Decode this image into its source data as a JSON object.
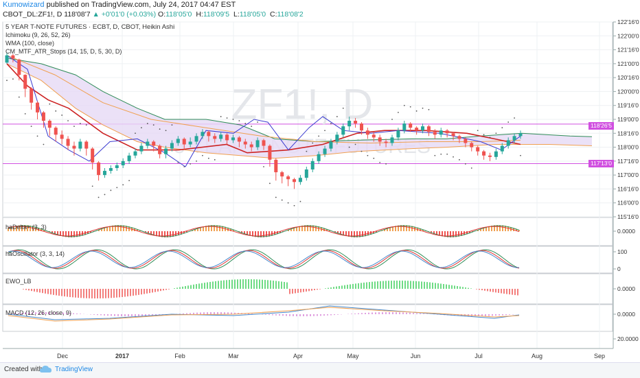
{
  "header": {
    "author": "Kumowizard",
    "published": "published on TradingView.com, July 24, 2017 04:47 EST",
    "symbol_line": "CBOT_DL:ZF1!, D",
    "last": "118'08'7",
    "change": "▲ +0'01'0 (+0.03%)",
    "ohlc": [
      {
        "k": "O:",
        "v": "118'05'0"
      },
      {
        "k": "H:",
        "v": "118'09'5"
      },
      {
        "k": "L:",
        "v": "118'05'0"
      },
      {
        "k": "C:",
        "v": "118'08'2"
      }
    ]
  },
  "indicators": {
    "title": "5 YEAR T-NOTE FUTURES · ECBT, D, CBOT, Heikin Ashi",
    "ichimoku": "Ichimoku (9, 26, 52, 26)",
    "wma": "WMA (100, close)",
    "atr": "CM_MTF_ATR_Stops (14, 15, D, 5, 30, D)"
  },
  "watermark": {
    "symbol": "ZF1!, D",
    "sub": "5 YEAR T-NOTE FUTURES"
  },
  "price_tags": [
    {
      "label": "118'26'5",
      "color": "#d04fe0"
    },
    {
      "label": "117'13'0",
      "color": "#d04fe0"
    }
  ],
  "panes": {
    "hadelta": {
      "label": "haDelta+ (3, 3)",
      "ticks": [
        "0.0000"
      ]
    },
    "haosc": {
      "label": "haOscillator (3, 3, 14)",
      "ticks": [
        "100",
        "0"
      ]
    },
    "ewo": {
      "label": "EWO_LB",
      "ticks": [
        "0.0000"
      ]
    },
    "macd": {
      "label": "MACD (12, 26, close, 9)",
      "ticks": [
        "0.0000",
        "20.0000"
      ]
    }
  },
  "footer": {
    "created": "Created with",
    "brand": "TradingView"
  },
  "colors": {
    "up": "#26a69a",
    "down": "#ef5350",
    "kumo": "#e6d9f5",
    "kijun": "#cc2222",
    "tenkan": "#3b3bd0",
    "wma": "#f0a050",
    "senkouA": "#2e8b57"
  },
  "chart_data": {
    "type": "candlestick",
    "x_ticks": [
      "Dec",
      "2017",
      "Feb",
      "Mar",
      "Apr",
      "May",
      "Jun",
      "Jul",
      "Aug",
      "Sep"
    ],
    "y_ticks": [
      "122'16'0",
      "122'00'0",
      "121'16'0",
      "121'00'0",
      "120'16'0",
      "120'00'0",
      "119'16'0",
      "119'00'0",
      "118'16'0",
      "118'00'0",
      "117'16'0",
      "117'00'0",
      "116'16'0",
      "116'00'0",
      "115'16'0"
    ],
    "ylim": [
      115.5,
      122.5
    ],
    "horizontal_lines": [
      118.83,
      117.41
    ],
    "candles": [
      [
        121.04,
        121.3,
        121.4,
        121.0
      ],
      [
        121.3,
        121.18,
        121.35,
        121.05
      ],
      [
        121.15,
        120.6,
        121.18,
        120.4
      ],
      [
        120.6,
        120.1,
        120.62,
        119.8
      ],
      [
        120.1,
        119.6,
        120.15,
        119.35
      ],
      [
        119.6,
        119.25,
        119.65,
        119.0
      ],
      [
        119.25,
        118.95,
        119.3,
        118.7
      ],
      [
        118.95,
        118.7,
        119.0,
        118.4
      ],
      [
        118.7,
        118.45,
        118.75,
        118.2
      ],
      [
        118.45,
        118.3,
        118.6,
        118.1
      ],
      [
        118.3,
        118.05,
        118.4,
        117.9
      ],
      [
        118.05,
        117.95,
        118.2,
        117.7
      ],
      [
        117.95,
        118.2,
        118.3,
        117.85
      ],
      [
        118.2,
        117.95,
        118.25,
        117.7
      ],
      [
        117.95,
        117.45,
        118.0,
        117.2
      ],
      [
        117.45,
        117.0,
        117.5,
        116.8
      ],
      [
        117.0,
        117.15,
        117.25,
        116.9
      ],
      [
        117.15,
        117.25,
        117.35,
        117.05
      ],
      [
        117.25,
        117.35,
        117.45,
        117.15
      ],
      [
        117.35,
        117.5,
        117.6,
        117.25
      ],
      [
        117.5,
        117.7,
        117.8,
        117.4
      ],
      [
        117.7,
        117.85,
        117.95,
        117.6
      ],
      [
        117.85,
        118.05,
        118.15,
        117.75
      ],
      [
        118.05,
        118.2,
        118.3,
        117.95
      ],
      [
        118.2,
        118.05,
        118.25,
        117.85
      ],
      [
        118.05,
        117.75,
        118.1,
        117.6
      ],
      [
        117.75,
        117.95,
        118.05,
        117.6
      ],
      [
        117.95,
        118.15,
        118.25,
        117.85
      ],
      [
        118.15,
        118.3,
        118.4,
        118.05
      ],
      [
        118.3,
        118.1,
        118.35,
        117.9
      ],
      [
        118.1,
        118.2,
        118.35,
        118.0
      ],
      [
        118.2,
        118.4,
        118.5,
        118.1
      ],
      [
        118.4,
        118.55,
        118.65,
        118.3
      ],
      [
        118.55,
        118.4,
        118.6,
        118.2
      ],
      [
        118.4,
        118.3,
        118.5,
        118.15
      ],
      [
        118.3,
        118.45,
        118.55,
        118.2
      ],
      [
        118.45,
        118.25,
        118.5,
        118.1
      ],
      [
        118.25,
        118.35,
        118.45,
        118.15
      ],
      [
        118.35,
        118.2,
        118.4,
        118.0
      ],
      [
        118.2,
        118.1,
        118.3,
        117.95
      ],
      [
        118.1,
        118.0,
        118.2,
        117.85
      ],
      [
        118.0,
        118.25,
        118.35,
        117.9
      ],
      [
        118.25,
        118.05,
        118.3,
        117.9
      ],
      [
        118.05,
        117.55,
        118.1,
        117.3
      ],
      [
        117.55,
        117.1,
        117.6,
        116.8
      ],
      [
        117.1,
        116.95,
        117.15,
        116.7
      ],
      [
        116.95,
        116.85,
        117.0,
        116.6
      ],
      [
        116.85,
        116.75,
        116.9,
        116.5
      ],
      [
        116.75,
        116.9,
        117.0,
        116.65
      ],
      [
        116.9,
        117.2,
        117.3,
        116.8
      ],
      [
        117.2,
        117.5,
        117.6,
        117.1
      ],
      [
        117.5,
        117.75,
        117.85,
        117.4
      ],
      [
        117.75,
        117.95,
        118.05,
        117.65
      ],
      [
        117.95,
        118.2,
        118.3,
        117.85
      ],
      [
        118.2,
        118.45,
        118.55,
        118.1
      ],
      [
        118.45,
        118.75,
        118.85,
        118.35
      ],
      [
        118.75,
        118.95,
        119.1,
        118.6
      ],
      [
        118.95,
        118.85,
        119.05,
        118.7
      ],
      [
        118.85,
        118.6,
        118.9,
        118.45
      ],
      [
        118.6,
        118.45,
        118.7,
        118.3
      ],
      [
        118.45,
        118.35,
        118.55,
        118.2
      ],
      [
        118.35,
        118.2,
        118.45,
        118.05
      ],
      [
        118.2,
        118.15,
        118.3,
        118.0
      ],
      [
        118.15,
        118.35,
        118.45,
        118.05
      ],
      [
        118.35,
        118.6,
        118.7,
        118.25
      ],
      [
        118.6,
        118.85,
        118.95,
        118.5
      ],
      [
        118.85,
        118.7,
        118.9,
        118.55
      ],
      [
        118.7,
        118.6,
        118.75,
        118.45
      ],
      [
        118.6,
        118.75,
        118.85,
        118.5
      ],
      [
        118.75,
        118.55,
        118.8,
        118.4
      ],
      [
        118.55,
        118.45,
        118.65,
        118.3
      ],
      [
        118.45,
        118.6,
        118.7,
        118.35
      ],
      [
        118.6,
        118.5,
        118.65,
        118.35
      ],
      [
        118.5,
        118.4,
        118.55,
        118.25
      ],
      [
        118.4,
        118.3,
        118.45,
        118.15
      ],
      [
        118.3,
        118.15,
        118.35,
        118.0
      ],
      [
        118.15,
        118.0,
        118.2,
        117.85
      ],
      [
        118.0,
        117.85,
        118.05,
        117.7
      ],
      [
        117.85,
        117.7,
        117.9,
        117.55
      ],
      [
        117.7,
        117.65,
        117.8,
        117.5
      ],
      [
        117.65,
        117.85,
        117.95,
        117.55
      ],
      [
        117.85,
        118.05,
        118.15,
        117.75
      ],
      [
        118.05,
        118.25,
        118.35,
        117.95
      ],
      [
        118.25,
        118.4,
        118.5,
        118.15
      ],
      [
        118.4,
        118.5,
        118.6,
        118.3
      ]
    ]
  }
}
